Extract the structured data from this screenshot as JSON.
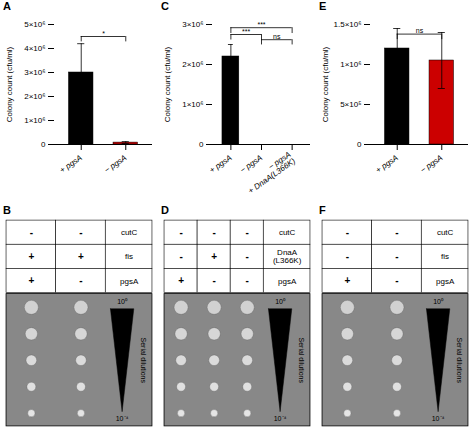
{
  "chart_data": [
    {
      "type": "bar",
      "title": "A",
      "categories": [
        "+ pgsA",
        "− pgsA"
      ],
      "values": [
        3000000,
        80000
      ],
      "errors": [
        1200000,
        40000
      ],
      "colors": [
        "#000000",
        "#cc0000"
      ],
      "ylabel": "Colony count (cfu/ml)",
      "ylim": [
        0,
        5000000
      ],
      "yticks": [
        0,
        {
          "value": 1000000,
          "label": "1×10⁶"
        },
        {
          "value": 2000000,
          "label": "2×10⁶"
        },
        {
          "value": 3000000,
          "label": "3×10⁶"
        },
        {
          "value": 4000000,
          "label": "4×10⁶"
        },
        {
          "value": 5000000,
          "label": "5×10⁶"
        }
      ],
      "significance": [
        {
          "from": "+ pgsA",
          "to": "− pgsA",
          "y": 4500000,
          "text": "*"
        }
      ]
    },
    {
      "type": "bar",
      "title": "C",
      "categories": [
        "+ pgsA",
        "− pgsA",
        "− pgsA\n+ DnaA(L366K)"
      ],
      "values": [
        2200000,
        null,
        null
      ],
      "errors": [
        300000,
        null,
        null
      ],
      "color": "#000000",
      "ylabel": "Colony count (cfu/ml)",
      "ylim": [
        0,
        3000000
      ],
      "yticks": [
        0,
        {
          "value": 1000000,
          "label": "1×10⁶"
        },
        {
          "value": 2000000,
          "label": "2×10⁶"
        },
        {
          "value": 3000000,
          "label": "3×10⁶"
        }
      ],
      "significance": [
        {
          "from": "+ pgsA",
          "to": "− pgsA",
          "y": 2750000,
          "text": "***"
        },
        {
          "from": "+ pgsA",
          "to": "− pgsA\n+ DnaA(L366K)",
          "y": 2920000,
          "text": "***"
        },
        {
          "from": "− pgsA",
          "to": "− pgsA\n+ DnaA(L366K)",
          "y": 2620000,
          "text": "ns"
        }
      ]
    },
    {
      "type": "bar",
      "title": "E",
      "categories": [
        "+ pgsA",
        "− pgsA"
      ],
      "values": [
        1200000,
        1050000
      ],
      "errors": [
        250000,
        350000
      ],
      "colors": [
        "#000000",
        "#cc0000"
      ],
      "ylabel": "Colony count (cfu/ml)",
      "ylim": [
        0,
        1500000
      ],
      "yticks": [
        0,
        {
          "value": 500000,
          "label": "5×10⁵"
        },
        {
          "value": 1000000,
          "label": "1×10⁶"
        },
        {
          "value": 1500000,
          "label": "1.5×10⁶"
        }
      ],
      "significance": [
        {
          "from": "+ pgsA",
          "to": "− pgsA",
          "y": 1380000,
          "text": "ns"
        }
      ]
    },
    {
      "type": "table",
      "title": "B",
      "rows": [
        {
          "label": "cutC",
          "cells": [
            "-",
            "-"
          ]
        },
        {
          "label": "fis",
          "cells": [
            "+",
            "+"
          ]
        },
        {
          "label": "pgsA",
          "cells": [
            "+",
            "-"
          ]
        }
      ],
      "annotations": [
        "10⁰",
        "10⁻⁴",
        "Serial dilutions"
      ]
    },
    {
      "type": "table",
      "title": "D",
      "rows": [
        {
          "label": "cutC",
          "cells": [
            "-",
            "-",
            "-"
          ]
        },
        {
          "label": "DnaA\n(L366K)",
          "cells": [
            "-",
            "+",
            "-"
          ]
        },
        {
          "label": "pgsA",
          "cells": [
            "+",
            "-",
            "-"
          ]
        }
      ],
      "annotations": [
        "10⁰",
        "10⁻⁴",
        "Serial dilutions"
      ]
    },
    {
      "type": "table",
      "title": "F",
      "rows": [
        {
          "label": "cutC",
          "cells": [
            "-",
            "-"
          ]
        },
        {
          "label": "fis",
          "cells": [
            "-",
            "-"
          ]
        },
        {
          "label": "pgsA",
          "cells": [
            "+",
            "-"
          ]
        }
      ],
      "annotations": [
        "10⁰",
        "10⁻⁴",
        "Serial dilutions"
      ]
    }
  ]
}
